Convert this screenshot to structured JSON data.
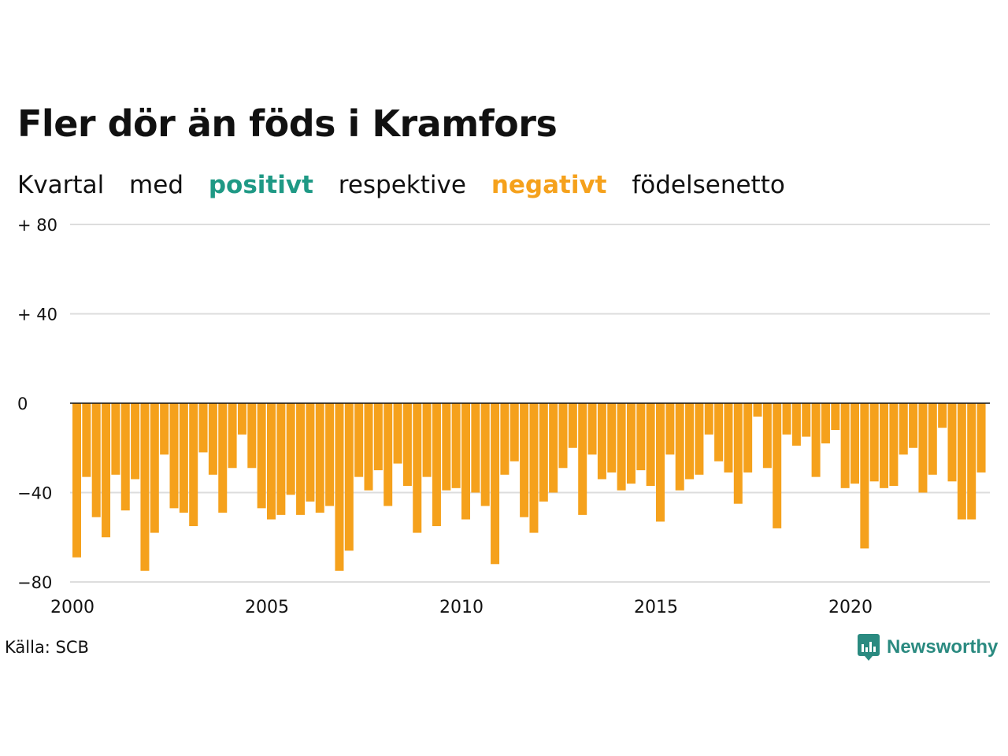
{
  "header": {
    "title": "Fler dör än föds i Kramfors",
    "subtitle_words": [
      "Kvartal",
      "med",
      "positivt",
      "respektive",
      "negativt",
      "födelsenetto"
    ]
  },
  "colors": {
    "positive": "#1f9985",
    "negative": "#f5a11c",
    "grid": "#dddddd",
    "axis": "#111111"
  },
  "chart_data": {
    "type": "bar",
    "title": "Fler dör än föds i Kramfors",
    "subtitle": "Kvartal med positivt respektive negativt födelsenetto",
    "xlabel": "",
    "ylabel": "",
    "ylim": [
      -80,
      80
    ],
    "yticks": [
      80,
      40,
      0,
      -40,
      -80
    ],
    "ytick_labels": [
      "+ 80",
      "+ 40",
      "0",
      "−40",
      "−80"
    ],
    "xtick_labels": [
      "2000",
      "2005",
      "2010",
      "2015",
      "2020"
    ],
    "grid": true,
    "start": "2000 Q1",
    "end": "2023 Q2",
    "values": [
      -69,
      -33,
      -51,
      -60,
      -32,
      -48,
      -34,
      -75,
      -58,
      -23,
      -47,
      -49,
      -55,
      -22,
      -32,
      -49,
      -29,
      -14,
      -29,
      -47,
      -52,
      -50,
      -41,
      -50,
      -44,
      -49,
      -46,
      -75,
      -66,
      -33,
      -39,
      -30,
      -46,
      -27,
      -37,
      -58,
      -33,
      -55,
      -39,
      -38,
      -52,
      -40,
      -46,
      -72,
      -32,
      -26,
      -51,
      -58,
      -44,
      -40,
      -29,
      -20,
      -50,
      -23,
      -34,
      -31,
      -39,
      -36,
      -30,
      -37,
      -53,
      -23,
      -39,
      -34,
      -32,
      -14,
      -26,
      -31,
      -45,
      -31,
      -6,
      -29,
      -56,
      -14,
      -19,
      -15,
      -33,
      -18,
      -12,
      -38,
      -36,
      -65,
      -35,
      -38,
      -37,
      -23,
      -20,
      -40,
      -32,
      -11,
      -35,
      -52,
      -52,
      -31
    ]
  },
  "footer": {
    "source": "Källa: SCB",
    "brand": "Newsworthy",
    "brand_icon": "newsworthy-logo-icon"
  }
}
